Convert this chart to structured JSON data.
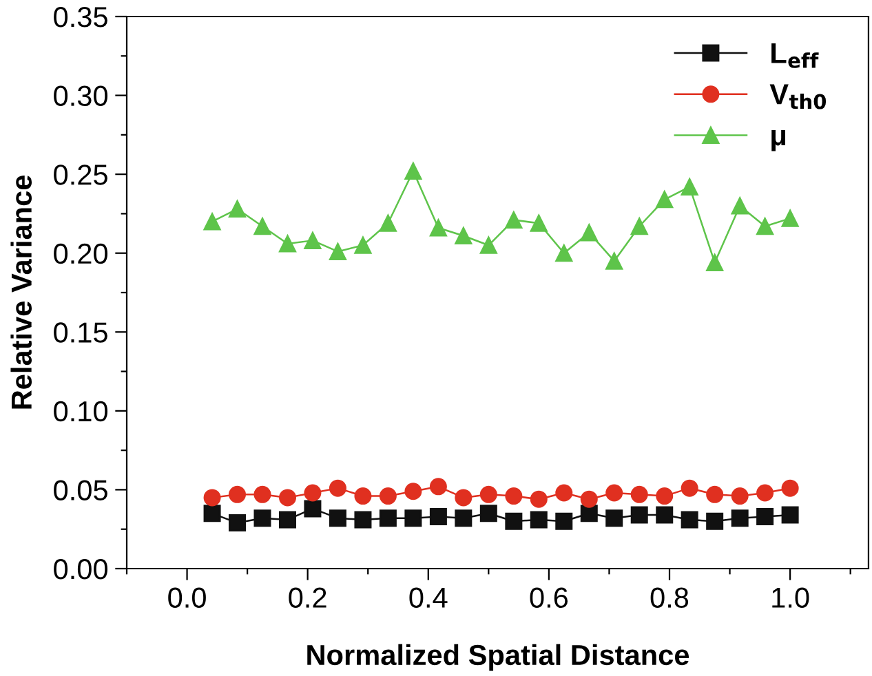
{
  "chart_data": {
    "type": "line",
    "xlabel": "Normalized Spatial Distance",
    "ylabel": "Relative Variance",
    "x": [
      0.0417,
      0.0833,
      0.125,
      0.1667,
      0.2083,
      0.25,
      0.2917,
      0.3333,
      0.375,
      0.4167,
      0.4583,
      0.5,
      0.5417,
      0.5833,
      0.625,
      0.6667,
      0.7083,
      0.75,
      0.7917,
      0.8333,
      0.875,
      0.9167,
      0.9583,
      1.0
    ],
    "series": [
      {
        "name": "L$_{eff}$",
        "color": "#111111",
        "marker": "square",
        "values": [
          0.035,
          0.029,
          0.032,
          0.031,
          0.038,
          0.032,
          0.031,
          0.032,
          0.032,
          0.033,
          0.032,
          0.035,
          0.03,
          0.031,
          0.03,
          0.035,
          0.032,
          0.034,
          0.034,
          0.031,
          0.03,
          0.032,
          0.033,
          0.034
        ]
      },
      {
        "name": "V$_{th0}$",
        "color": "#e03020",
        "marker": "circle",
        "values": [
          0.045,
          0.047,
          0.047,
          0.045,
          0.048,
          0.051,
          0.046,
          0.046,
          0.049,
          0.052,
          0.045,
          0.047,
          0.046,
          0.044,
          0.048,
          0.044,
          0.048,
          0.047,
          0.046,
          0.051,
          0.047,
          0.046,
          0.048,
          0.051
        ]
      },
      {
        "name": "μ",
        "color": "#5ec44a",
        "marker": "triangle",
        "values": [
          0.22,
          0.228,
          0.217,
          0.206,
          0.208,
          0.201,
          0.205,
          0.219,
          0.252,
          0.216,
          0.211,
          0.205,
          0.221,
          0.219,
          0.2,
          0.213,
          0.195,
          0.217,
          0.234,
          0.242,
          0.194,
          0.23,
          0.217,
          0.222
        ]
      }
    ],
    "xlim": [
      -0.1,
      1.13
    ],
    "xticks": [
      {
        "value": -0.1,
        "label": null
      },
      {
        "value": 0.0,
        "label": "0.0"
      },
      {
        "value": 0.1,
        "label": null
      },
      0.2,
      {
        "value": 0.3,
        "label": null
      },
      0.4,
      {
        "value": 0.5,
        "label": null
      },
      0.6,
      {
        "value": 0.7,
        "label": null
      },
      0.8,
      {
        "value": 0.9,
        "label": null
      },
      {
        "value": 1.0,
        "label": "1.0"
      },
      {
        "value": 1.1,
        "label": null
      }
    ],
    "ylim": [
      0.0,
      0.35
    ],
    "yticks": [
      {
        "value": 0.0,
        "label": "0.00"
      },
      {
        "value": 0.025,
        "label": null
      },
      {
        "value": 0.05,
        "label": "0.05"
      },
      {
        "value": 0.075,
        "label": null
      },
      {
        "value": 0.1,
        "label": "0.10"
      },
      {
        "value": 0.125,
        "label": null
      },
      {
        "value": 0.15,
        "label": "0.15"
      },
      {
        "value": 0.175,
        "label": null
      },
      {
        "value": 0.2,
        "label": "0.20"
      },
      {
        "value": 0.225,
        "label": null
      },
      {
        "value": 0.25,
        "label": "0.25"
      },
      {
        "value": 0.275,
        "label": null
      },
      {
        "value": 0.3,
        "label": "0.30"
      },
      {
        "value": 0.325,
        "label": null
      },
      {
        "value": 0.35,
        "label": "0.35"
      }
    ],
    "grid": false,
    "legend": "top right",
    "line_style": "solid"
  }
}
